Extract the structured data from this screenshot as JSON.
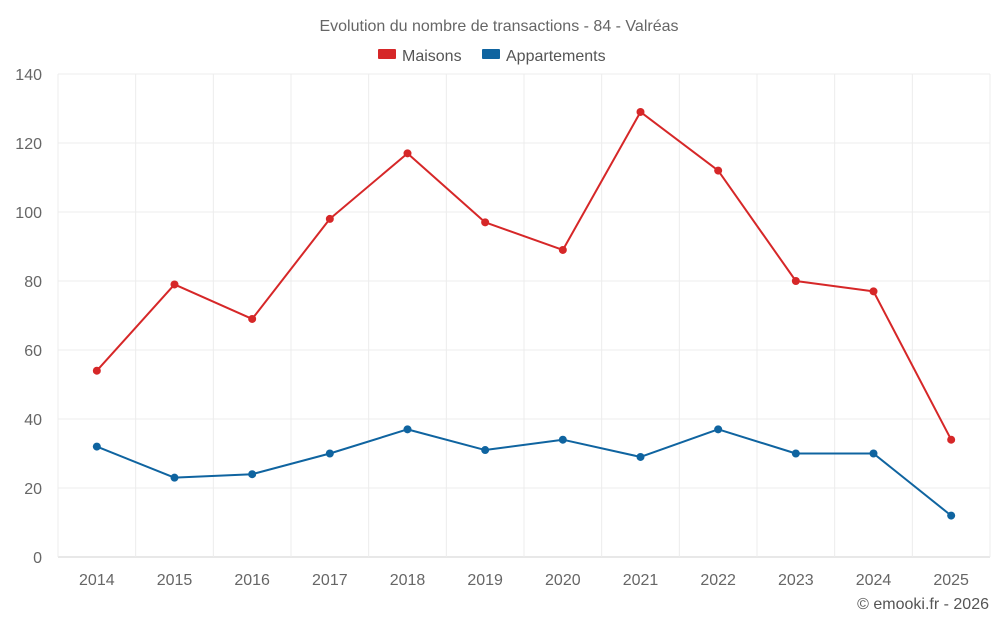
{
  "chart_data": {
    "type": "line",
    "title": "Evolution du nombre de transactions - 84 - Valréas",
    "categories": [
      "2014",
      "2015",
      "2016",
      "2017",
      "2018",
      "2019",
      "2020",
      "2021",
      "2022",
      "2023",
      "2024",
      "2025"
    ],
    "series": [
      {
        "name": "Maisons",
        "color": "#d62728",
        "values": [
          54,
          79,
          69,
          98,
          117,
          97,
          89,
          129,
          112,
          80,
          77,
          34
        ]
      },
      {
        "name": "Appartements",
        "color": "#0f64a0",
        "values": [
          32,
          23,
          24,
          30,
          37,
          31,
          34,
          29,
          37,
          30,
          30,
          12
        ]
      }
    ],
    "y_ticks": [
      "0",
      "20",
      "40",
      "60",
      "80",
      "100",
      "120",
      "140"
    ],
    "ylim": [
      0,
      140
    ],
    "xlabel": "",
    "ylabel": "",
    "grid": true,
    "legend_position": "top-center"
  },
  "footer": "© emooki.fr - 2026"
}
